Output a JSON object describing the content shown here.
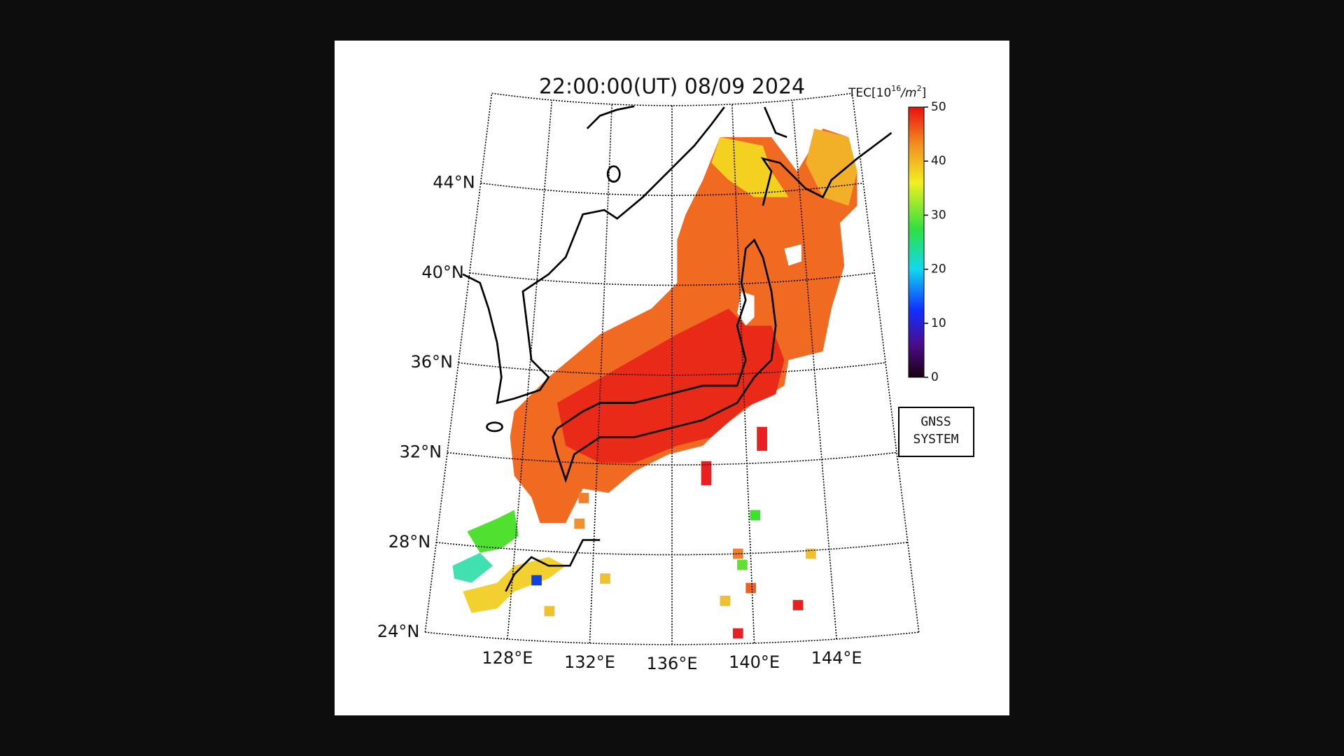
{
  "map": {
    "title": "22:00:00(UT) 08/09 2024",
    "xlim": [
      124,
      148
    ],
    "ylim": [
      24,
      48
    ],
    "xticks": [
      {
        "value": 128,
        "label": "128°E"
      },
      {
        "value": 132,
        "label": "132°E"
      },
      {
        "value": 136,
        "label": "136°E"
      },
      {
        "value": 140,
        "label": "140°E"
      },
      {
        "value": 144,
        "label": "144°E"
      }
    ],
    "yticks": [
      {
        "value": 24,
        "label": "24°N"
      },
      {
        "value": 28,
        "label": "28°N"
      },
      {
        "value": 32,
        "label": "32°N"
      },
      {
        "value": 36,
        "label": "36°N"
      },
      {
        "value": 40,
        "label": "40°N"
      },
      {
        "value": 44,
        "label": "44°N"
      }
    ],
    "colorbar": {
      "label": [
        "TEC[10",
        "16",
        "/m",
        "2",
        "]"
      ],
      "lim": [
        0,
        50
      ],
      "ticks": [
        0,
        10,
        20,
        30,
        40,
        50
      ]
    },
    "badge": [
      "GNSS",
      "SYSTEM"
    ]
  }
}
